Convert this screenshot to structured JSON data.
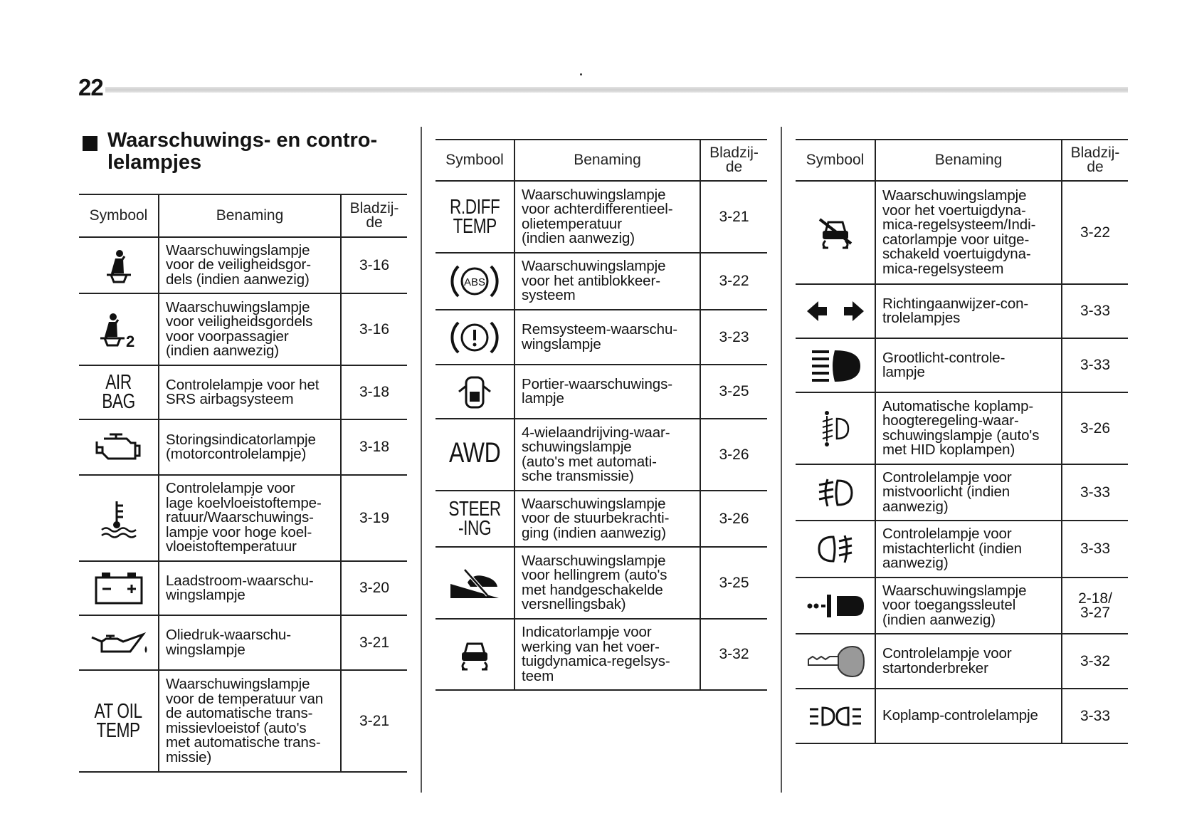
{
  "page_number": "22",
  "section_title": "Waarschuwings- en contro-\nlelampjes",
  "headers": {
    "symbol": "Symbool",
    "name": "Benaming",
    "page": "Bladzij-\nde"
  },
  "tables": [
    {
      "rows": [
        {
          "icon": "seatbelt-icon",
          "name": "Waarschuwingslampje\nvoor de veiligheidsgor-\ndels (indien aanwezig)",
          "page": "3-16"
        },
        {
          "icon": "seatbelt-passenger-icon",
          "icon_text": "2",
          "name": "Waarschuwingslampje\nvoor veiligheidsgordels\nvoor voorpassagier\n(indien aanwezig)",
          "page": "3-16"
        },
        {
          "symbol_text": "AIR BAG",
          "name": "Controlelampje voor het\nSRS airbagsysteem",
          "page": "3-18"
        },
        {
          "icon": "check-engine-icon",
          "name": "Storingsindicatorlampje\n(motorcontrolelampje)",
          "page": "3-18"
        },
        {
          "icon": "coolant-temperature-icon",
          "name": "Controlelampje voor\nlage koelvloeistoftempe-\nratuur/Waarschuwings-\nlampje voor hoge koel-\nvloeistoftemperatuur",
          "page": "3-19"
        },
        {
          "icon": "battery-icon",
          "name": "Laadstroom-waarschu-\nwingslampje",
          "page": "3-20"
        },
        {
          "icon": "oil-pressure-icon",
          "name": "Oliedruk-waarschu-\nwingslampje",
          "page": "3-21"
        },
        {
          "symbol_text": "AT OIL\nTEMP",
          "name": "Waarschuwingslampje\nvoor de temperatuur van\nde automatische trans-\nmissievloeistof (auto's\nmet automatische trans-\nmissie)",
          "page": "3-21"
        }
      ]
    },
    {
      "rows": [
        {
          "symbol_text": "R.DIFF\nTEMP",
          "name": "Waarschuwingslampje\nvoor achterdifferentieel-\nolietemperatuur\n(indien aanwezig)",
          "page": "3-21"
        },
        {
          "icon": "abs-icon",
          "icon_text": "ABS",
          "name": "Waarschuwingslampje\nvoor het antiblokkeer-\nsysteem",
          "page": "3-22"
        },
        {
          "icon": "brake-warning-icon",
          "name": "Remsysteem-waarschu-\nwingslampje",
          "page": "3-23"
        },
        {
          "icon": "door-open-icon",
          "name": "Portier-waarschuwings-\nlampje",
          "page": "3-25"
        },
        {
          "symbol_text": "AWD",
          "big": true,
          "name": "4-wielaandrijving-waar-\nschuwingslampje\n(auto's met automati-\nsche transmissie)",
          "page": "3-26"
        },
        {
          "symbol_text": "STEER\n-ING",
          "name": "Waarschuwingslampje\nvoor de stuurbekrachti-\nging (indien aanwezig)",
          "page": "3-26"
        },
        {
          "icon": "hill-hold-icon",
          "name": "Waarschuwingslampje\nvoor hellingrem (auto's\nmet handgeschakelde\nversnellingsbak)",
          "page": "3-25"
        },
        {
          "icon": "vehicle-dynamics-icon",
          "name": "Indicatorlampje voor\nwerking van het voer-\ntuigdynamica-regelsys-\nteem",
          "page": "3-32"
        }
      ]
    },
    {
      "rows": [
        {
          "icon": "vehicle-dynamics-off-icon",
          "name": "Waarschuwingslampje\nvoor het voertuigdyna-\nmica-regelsysteem/Indi-\ncatorlampje voor uitge-\nschakeld voertuigdyna-\nmica-regelsysteem",
          "page": "3-22"
        },
        {
          "icon": "turn-signal-icon",
          "name": "Richtingaanwijzer-con-\ntrolelampjes",
          "page": "3-33"
        },
        {
          "icon": "high-beam-icon",
          "name": "Grootlicht-controle-\nlampje",
          "page": "3-33"
        },
        {
          "icon": "headlight-leveling-icon",
          "name": "Automatische koplamp-\nhoogteregeling-waar-\nschuwingslampje (auto's\nmet HID koplampen)",
          "page": "3-26"
        },
        {
          "icon": "front-fog-light-icon",
          "name": "Controlelampje voor\nmistvoorlicht (indien\naanwezig)",
          "page": "3-33"
        },
        {
          "icon": "rear-fog-light-icon",
          "name": "Controlelampje voor\nmistachterlicht (indien\naanwezig)",
          "page": "3-33"
        },
        {
          "icon": "access-key-icon",
          "name": "Waarschuwingslampje\nvoor toegangssleutel\n(indien aanwezig)",
          "page": "2-18/\n3-27"
        },
        {
          "icon": "immobilizer-key-icon",
          "name": "Controlelampje voor\nstartonderbreker",
          "page": "3-32"
        },
        {
          "icon": "headlight-indicator-icon",
          "name": "Koplamp-controlelampje",
          "page": "3-33"
        }
      ]
    }
  ]
}
